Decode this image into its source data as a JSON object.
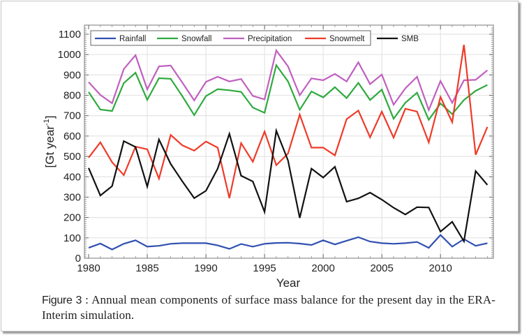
{
  "chart_data": {
    "type": "line",
    "title": "",
    "xlabel": "Year",
    "ylabel": "[Gt year^-1]",
    "ylabel_parts": {
      "base": "[Gt year",
      "sup": "-1",
      "close": "]"
    },
    "xlim": [
      1980,
      2014
    ],
    "ylim": [
      0,
      1100
    ],
    "xticks": [
      1980,
      1985,
      1990,
      1995,
      2000,
      2005,
      2010
    ],
    "yticks": [
      0,
      100,
      200,
      300,
      400,
      500,
      600,
      700,
      800,
      900,
      1000,
      1100
    ],
    "grid": true,
    "legend_position": "top-left",
    "x": [
      1980,
      1981,
      1982,
      1983,
      1984,
      1985,
      1986,
      1987,
      1988,
      1989,
      1990,
      1991,
      1992,
      1993,
      1994,
      1995,
      1996,
      1997,
      1998,
      1999,
      2000,
      2001,
      2002,
      2003,
      2004,
      2005,
      2006,
      2007,
      2008,
      2009,
      2010,
      2011,
      2012,
      2013,
      2014
    ],
    "series": [
      {
        "name": "Rainfall",
        "color": "#3050b0",
        "values": [
          51,
          72,
          43,
          71,
          88,
          57,
          61,
          71,
          74,
          74,
          74,
          63,
          46,
          70,
          57,
          71,
          75,
          76,
          72,
          65,
          88,
          68,
          86,
          103,
          82,
          74,
          71,
          74,
          80,
          51,
          114,
          57,
          94,
          61,
          74
        ]
      },
      {
        "name": "Snowfall",
        "color": "#2eaa3e",
        "values": [
          816,
          730,
          723,
          860,
          911,
          778,
          884,
          881,
          795,
          703,
          796,
          830,
          825,
          817,
          740,
          714,
          948,
          868,
          729,
          819,
          790,
          840,
          786,
          861,
          777,
          828,
          685,
          763,
          813,
          680,
          760,
          708,
          777,
          822,
          851
        ]
      },
      {
        "name": "Precipitation",
        "color": "#c060c0",
        "values": [
          865,
          802,
          761,
          929,
          997,
          829,
          942,
          946,
          862,
          775,
          866,
          891,
          868,
          880,
          797,
          780,
          1020,
          942,
          800,
          883,
          874,
          905,
          868,
          962,
          855,
          902,
          754,
          834,
          891,
          728,
          870,
          763,
          874,
          876,
          923
        ]
      },
      {
        "name": "Snowmelt",
        "color": "#f03a28",
        "values": [
          494,
          569,
          472,
          408,
          548,
          535,
          391,
          605,
          554,
          528,
          573,
          543,
          295,
          565,
          474,
          622,
          457,
          514,
          705,
          543,
          543,
          505,
          683,
          725,
          594,
          720,
          592,
          734,
          720,
          569,
          792,
          668,
          1048,
          508,
          645
        ]
      },
      {
        "name": "SMB",
        "color": "#111111",
        "values": [
          443,
          308,
          354,
          575,
          546,
          352,
          583,
          463,
          377,
          295,
          331,
          440,
          611,
          405,
          377,
          228,
          626,
          480,
          198,
          440,
          396,
          449,
          278,
          294,
          322,
          288,
          248,
          215,
          251,
          249,
          131,
          179,
          83,
          428,
          360
        ]
      }
    ]
  },
  "caption": {
    "label": "Figure 3",
    "separator": " : ",
    "text": "Annual mean components of surface mass balance for the present day in the ERA-Interim simulation."
  }
}
